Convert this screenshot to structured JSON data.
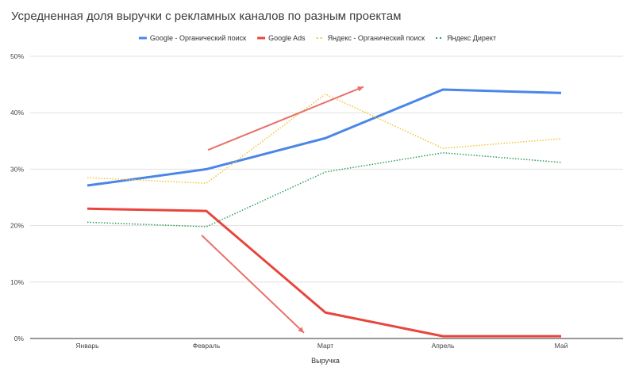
{
  "chart_data": {
    "type": "line",
    "title": "Усредненная доля выручки с рекламных каналов по разным проектам",
    "xlabel": "Выручка",
    "ylabel": "",
    "categories": [
      "Январь",
      "Февраль",
      "Март",
      "Апрель",
      "Май"
    ],
    "ylim": [
      0,
      50
    ],
    "yticks": [
      0,
      10,
      20,
      30,
      40,
      50
    ],
    "ytick_labels": [
      "0%",
      "10%",
      "20%",
      "30%",
      "40%",
      "50%"
    ],
    "grid": true,
    "legend_position": "top",
    "series": [
      {
        "name": "Google - Органический поиск",
        "color": "#4a86e8",
        "style": "solid",
        "values": [
          27.1,
          30.0,
          35.5,
          44.1,
          43.5
        ]
      },
      {
        "name": "Google Ads",
        "color": "#e8453c",
        "style": "solid",
        "values": [
          23.0,
          22.6,
          4.6,
          0.4,
          0.4
        ]
      },
      {
        "name": "Яндекс - Органический поиск",
        "color": "#f4c430",
        "style": "dotted",
        "values": [
          28.5,
          27.5,
          43.3,
          33.7,
          35.4
        ]
      },
      {
        "name": "Яндекс Директ",
        "color": "#2e9e5a",
        "style": "dotted",
        "values": [
          20.6,
          19.8,
          29.5,
          32.9,
          31.2
        ]
      }
    ],
    "annotations": [
      {
        "type": "arrow",
        "color": "#e8716b",
        "from": {
          "x": "Февраль",
          "y": 33.4
        },
        "to": {
          "x": "Март+",
          "y": 44.6
        },
        "meaning": "up"
      },
      {
        "type": "arrow",
        "color": "#e8716b",
        "from": {
          "x": "Февраль",
          "y": 18.3
        },
        "to": {
          "x": "Март-",
          "y": 1.0
        },
        "meaning": "down"
      }
    ]
  }
}
